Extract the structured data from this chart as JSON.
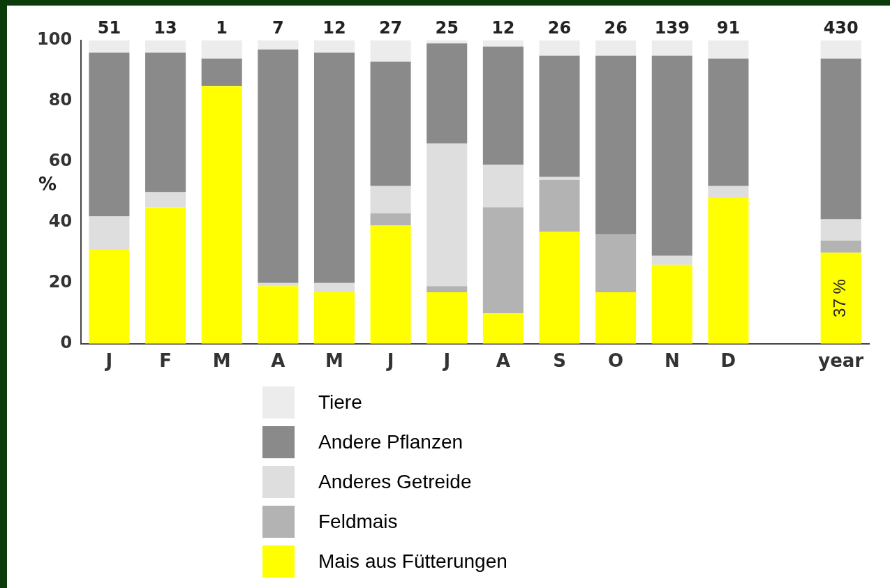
{
  "chart_data": {
    "type": "bar",
    "stacked": true,
    "ylabel": "%",
    "categories": [
      "J",
      "F",
      "M",
      "A",
      "M",
      "J",
      "J",
      "A",
      "S",
      "O",
      "N",
      "D",
      null,
      "year"
    ],
    "series": [
      {
        "name": "Mais aus Fütterungen",
        "color": "#ffff00",
        "values": [
          31,
          45,
          85,
          19,
          17,
          39,
          17,
          10,
          37,
          17,
          26,
          48,
          null,
          30
        ]
      },
      {
        "name": "Feldmais",
        "color": "#b3b3b3",
        "values": [
          0,
          0,
          0,
          0,
          0,
          4,
          2,
          35,
          17,
          19,
          0,
          0,
          null,
          4
        ]
      },
      {
        "name": "Anderes Getreide",
        "color": "#dedede",
        "values": [
          11,
          5,
          0,
          1,
          3,
          9,
          47,
          14,
          1,
          0,
          3,
          4,
          null,
          7
        ]
      },
      {
        "name": "Andere Pflanzen",
        "color": "#8a8a8a",
        "values": [
          54,
          46,
          9,
          77,
          76,
          41,
          33,
          39,
          40,
          59,
          66,
          42,
          null,
          53
        ]
      },
      {
        "name": "Tiere",
        "color": "#ececec",
        "values": [
          4,
          4,
          6,
          3,
          4,
          7,
          1,
          2,
          5,
          5,
          5,
          6,
          null,
          6
        ]
      }
    ],
    "ylim": [
      0,
      100
    ],
    "yticks": [
      0,
      20,
      40,
      60,
      80,
      100
    ],
    "legend": "bottom",
    "annotations": [
      "51",
      "13",
      "1",
      "7",
      "12",
      "27",
      "25",
      "12",
      "26",
      "26",
      "139",
      "91",
      "430",
      "37 %"
    ]
  }
}
